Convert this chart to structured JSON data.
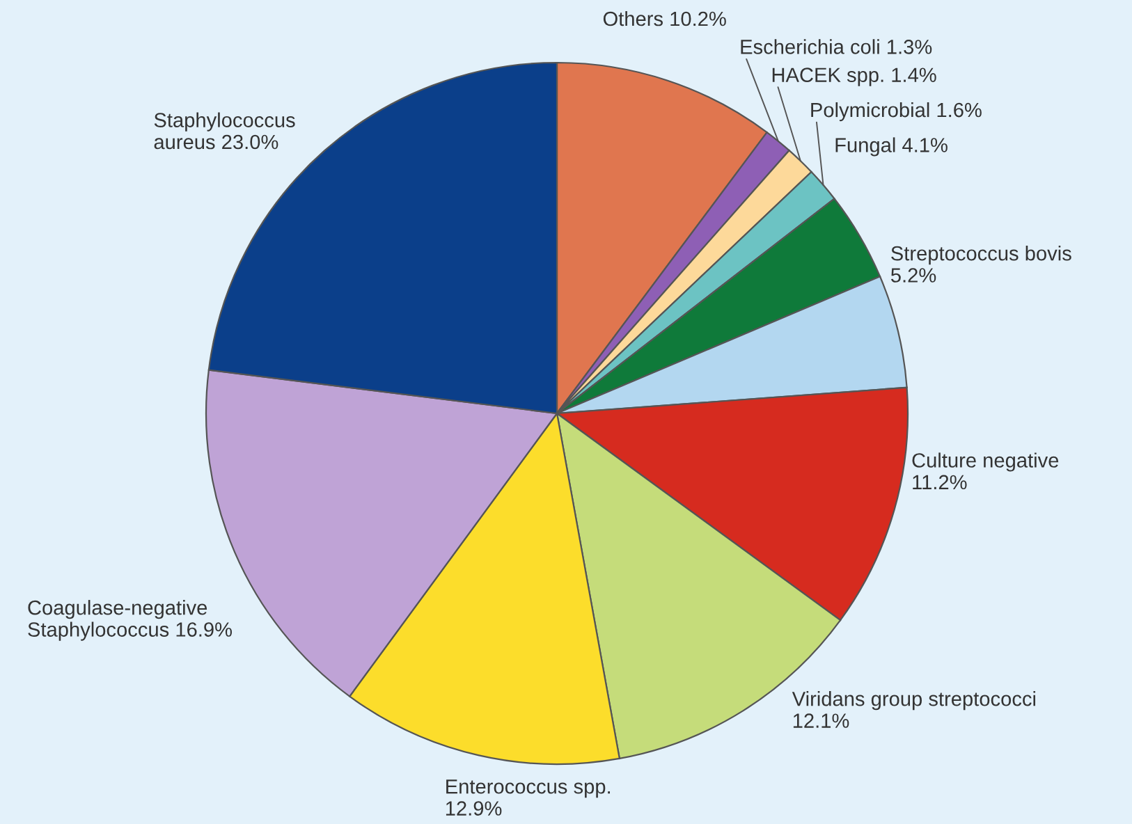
{
  "chart_data": {
    "type": "pie",
    "categories": [
      "Others",
      "Escherichia coli",
      "HACEK spp.",
      "Polymicrobial",
      "Fungal",
      "Streptococcus bovis",
      "Culture negative",
      "Viridans group streptococci",
      "Enterococcus spp.",
      "Coagulase-negative Staphylococcus",
      "Staphylococcus aureus"
    ],
    "values": [
      10.2,
      1.3,
      1.4,
      1.6,
      4.1,
      5.2,
      11.2,
      12.1,
      12.9,
      16.9,
      23.0
    ],
    "value_labels": [
      "10.2%",
      "1.3%",
      "1.4%",
      "1.6%",
      "4.1%",
      "5.2%",
      "11.2%",
      "12.1%",
      "12.9%",
      "16.9%",
      "23.0%"
    ],
    "colors": [
      "#e0764f",
      "#8e5fb5",
      "#fdd99a",
      "#6cc3c3",
      "#0f7a3a",
      "#b3d7f0",
      "#d62b1f",
      "#c5dc7a",
      "#fcdd2b",
      "#bfa3d6",
      "#0b3f8a"
    ]
  }
}
